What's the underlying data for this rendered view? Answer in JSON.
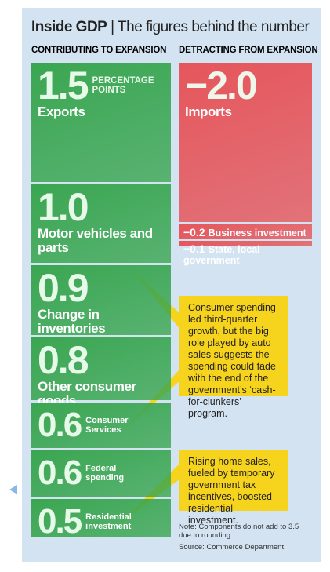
{
  "chart_data": {
    "type": "bar",
    "title": "Inside GDP",
    "subtitle": "The figures behind the number",
    "unit": "PERCENTAGE POINTS",
    "series": [
      {
        "name": "CONTRIBUTING TO EXPANSION",
        "color": "#3aa651",
        "categories": [
          "Exports",
          "Motor vehicles and parts",
          "Change in inventories",
          "Other consumer goods",
          "Consumer Services",
          "Federal spending",
          "Residential investment"
        ],
        "values": [
          1.5,
          1.0,
          0.9,
          0.8,
          0.6,
          0.6,
          0.5
        ],
        "value_labels": [
          "1.5",
          "1.0",
          "0.9",
          "0.8",
          "0.6",
          "0.6",
          "0.5"
        ]
      },
      {
        "name": "DETRACTING FROM EXPANSION",
        "color": "#e5565b",
        "categories": [
          "Imports",
          "Business investment",
          "State, local government"
        ],
        "values": [
          -2.0,
          -0.2,
          -0.1
        ],
        "value_labels": [
          "−2.0",
          "−0.2",
          "−0.1"
        ]
      }
    ],
    "annotations": [
      "Consumer spending led third-quarter growth, but the big role played by auto sales suggests the spending could fade with the end of the government’s ‘cash-for-clunkers’ program.",
      "Rising home sales, fueled by temporary government tax incentives, boosted residential investment."
    ],
    "note": "Note: Components do not add to 3.5 due to rounding.",
    "source": "Source: Commerce Department"
  }
}
